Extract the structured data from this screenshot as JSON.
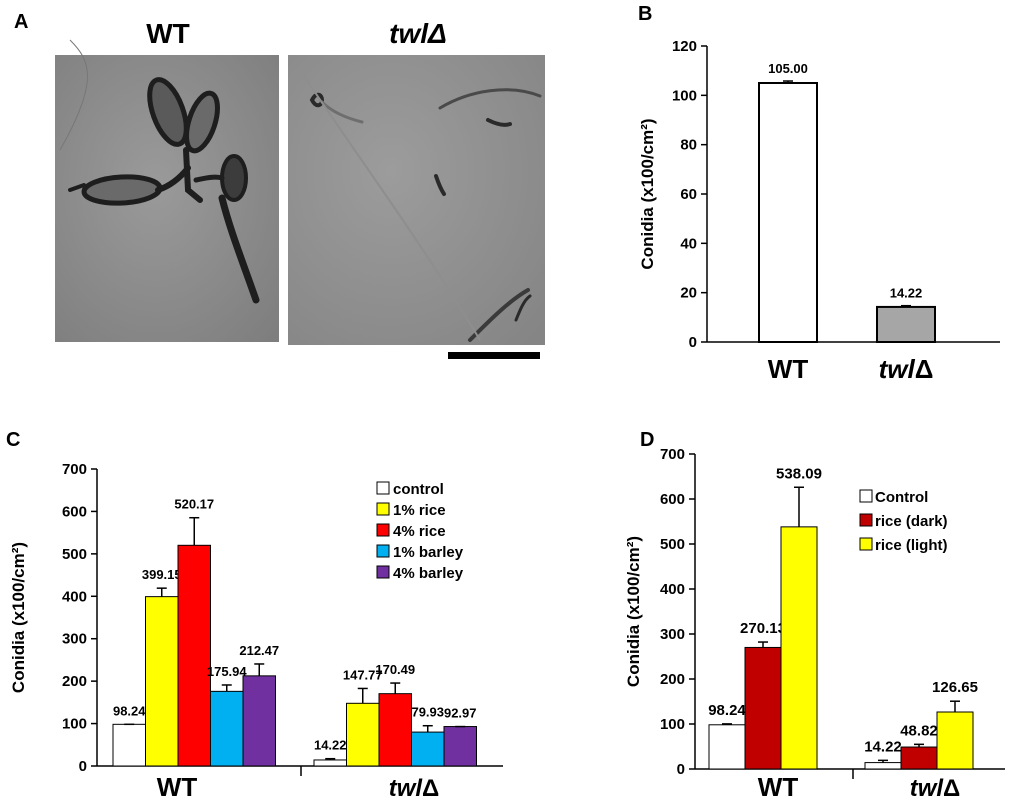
{
  "panel_a": {
    "letter": "A",
    "left_title": "WT",
    "right_title": "twlΔ",
    "images": [
      {
        "name": "wt-micrograph",
        "description_hidden": true
      },
      {
        "name": "twl-micrograph",
        "description_hidden": true
      }
    ]
  },
  "chart_data": [
    {
      "panel": "B",
      "type": "bar",
      "categories": [
        "WT",
        "twlΔ"
      ],
      "values": [
        105.0,
        14.22
      ],
      "value_labels": [
        "105.00",
        "14.22"
      ],
      "errors": [
        0.8,
        0.5
      ],
      "colors": [
        "#ffffff",
        "#a6a6a6"
      ],
      "ylabel": "Conidia (x100/cm²)",
      "ylim": [
        0,
        120
      ],
      "yticks": [
        0,
        20,
        40,
        60,
        80,
        100,
        120
      ],
      "grid": false
    },
    {
      "panel": "C",
      "type": "bar",
      "categories": [
        "WT",
        "twlΔ"
      ],
      "series": [
        {
          "name": "control",
          "color": "#ffffff",
          "values": [
            98.24,
            14.22
          ],
          "labels": [
            "98.24",
            "14.22"
          ],
          "errors": [
            0,
            3
          ]
        },
        {
          "name": "1% rice",
          "color": "#ffff00",
          "values": [
            399.15,
            147.77
          ],
          "labels": [
            "399.15",
            "147.77"
          ],
          "errors": [
            20,
            35
          ]
        },
        {
          "name": "4% rice",
          "color": "#ff0000",
          "values": [
            520.17,
            170.49
          ],
          "labels": [
            "520.17",
            "170.49"
          ],
          "errors": [
            65,
            25
          ]
        },
        {
          "name": "1% barley",
          "color": "#00b0f0",
          "values": [
            175.94,
            79.93
          ],
          "labels": [
            "175.94",
            "79.93"
          ],
          "errors": [
            15,
            15
          ]
        },
        {
          "name": "4% barley",
          "color": "#7030a0",
          "values": [
            212.47,
            92.97
          ],
          "labels": [
            "212.47",
            "92.97"
          ],
          "errors": [
            28,
            0
          ]
        }
      ],
      "ylabel": "Conidia (x100/cm²)",
      "ylim": [
        0,
        700
      ],
      "yticks": [
        0,
        100,
        200,
        300,
        400,
        500,
        600,
        700
      ],
      "legend": "top-right",
      "grid": false
    },
    {
      "panel": "D",
      "type": "bar",
      "categories": [
        "WT",
        "twlΔ"
      ],
      "series": [
        {
          "name": "Control",
          "color": "#ffffff",
          "values": [
            98.24,
            14.22
          ],
          "labels": [
            "98.24",
            "14.22"
          ],
          "errors": [
            2,
            5
          ]
        },
        {
          "name": "rice (dark)",
          "color": "#c00000",
          "values": [
            270.13,
            48.82
          ],
          "labels": [
            "270.13",
            "48.82"
          ],
          "errors": [
            12,
            6
          ]
        },
        {
          "name": "rice (light)",
          "color": "#ffff00",
          "values": [
            538.09,
            126.65
          ],
          "labels": [
            "538.09",
            "126.65"
          ],
          "errors": [
            88,
            24
          ]
        }
      ],
      "ylabel": "Conidia (x100/cm²)",
      "ylim": [
        0,
        700
      ],
      "yticks": [
        0,
        100,
        200,
        300,
        400,
        500,
        600,
        700
      ],
      "legend": "top-right",
      "grid": false
    }
  ],
  "letters": {
    "b": "B",
    "c": "C",
    "d": "D"
  }
}
